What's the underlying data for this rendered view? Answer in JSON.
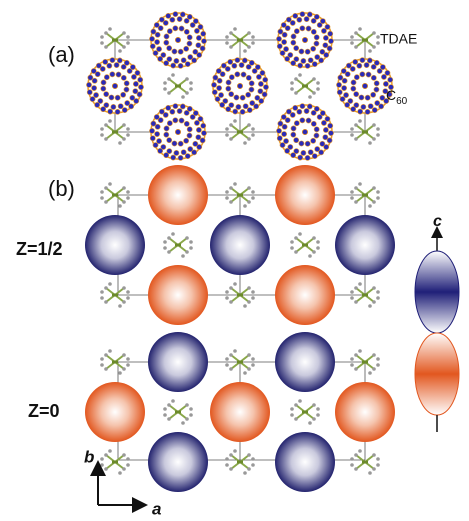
{
  "panel_a": {
    "label": "(a)",
    "tdae_label": "TDAE",
    "c60_label": {
      "text": "C",
      "subscript": "60"
    }
  },
  "panel_b": {
    "label": "(b)",
    "upper_layer": "Z=1/2",
    "lower_layer": "Z=0",
    "orbital_axis": "c"
  },
  "axes": {
    "vertical": "b",
    "horizontal": "a"
  }
}
